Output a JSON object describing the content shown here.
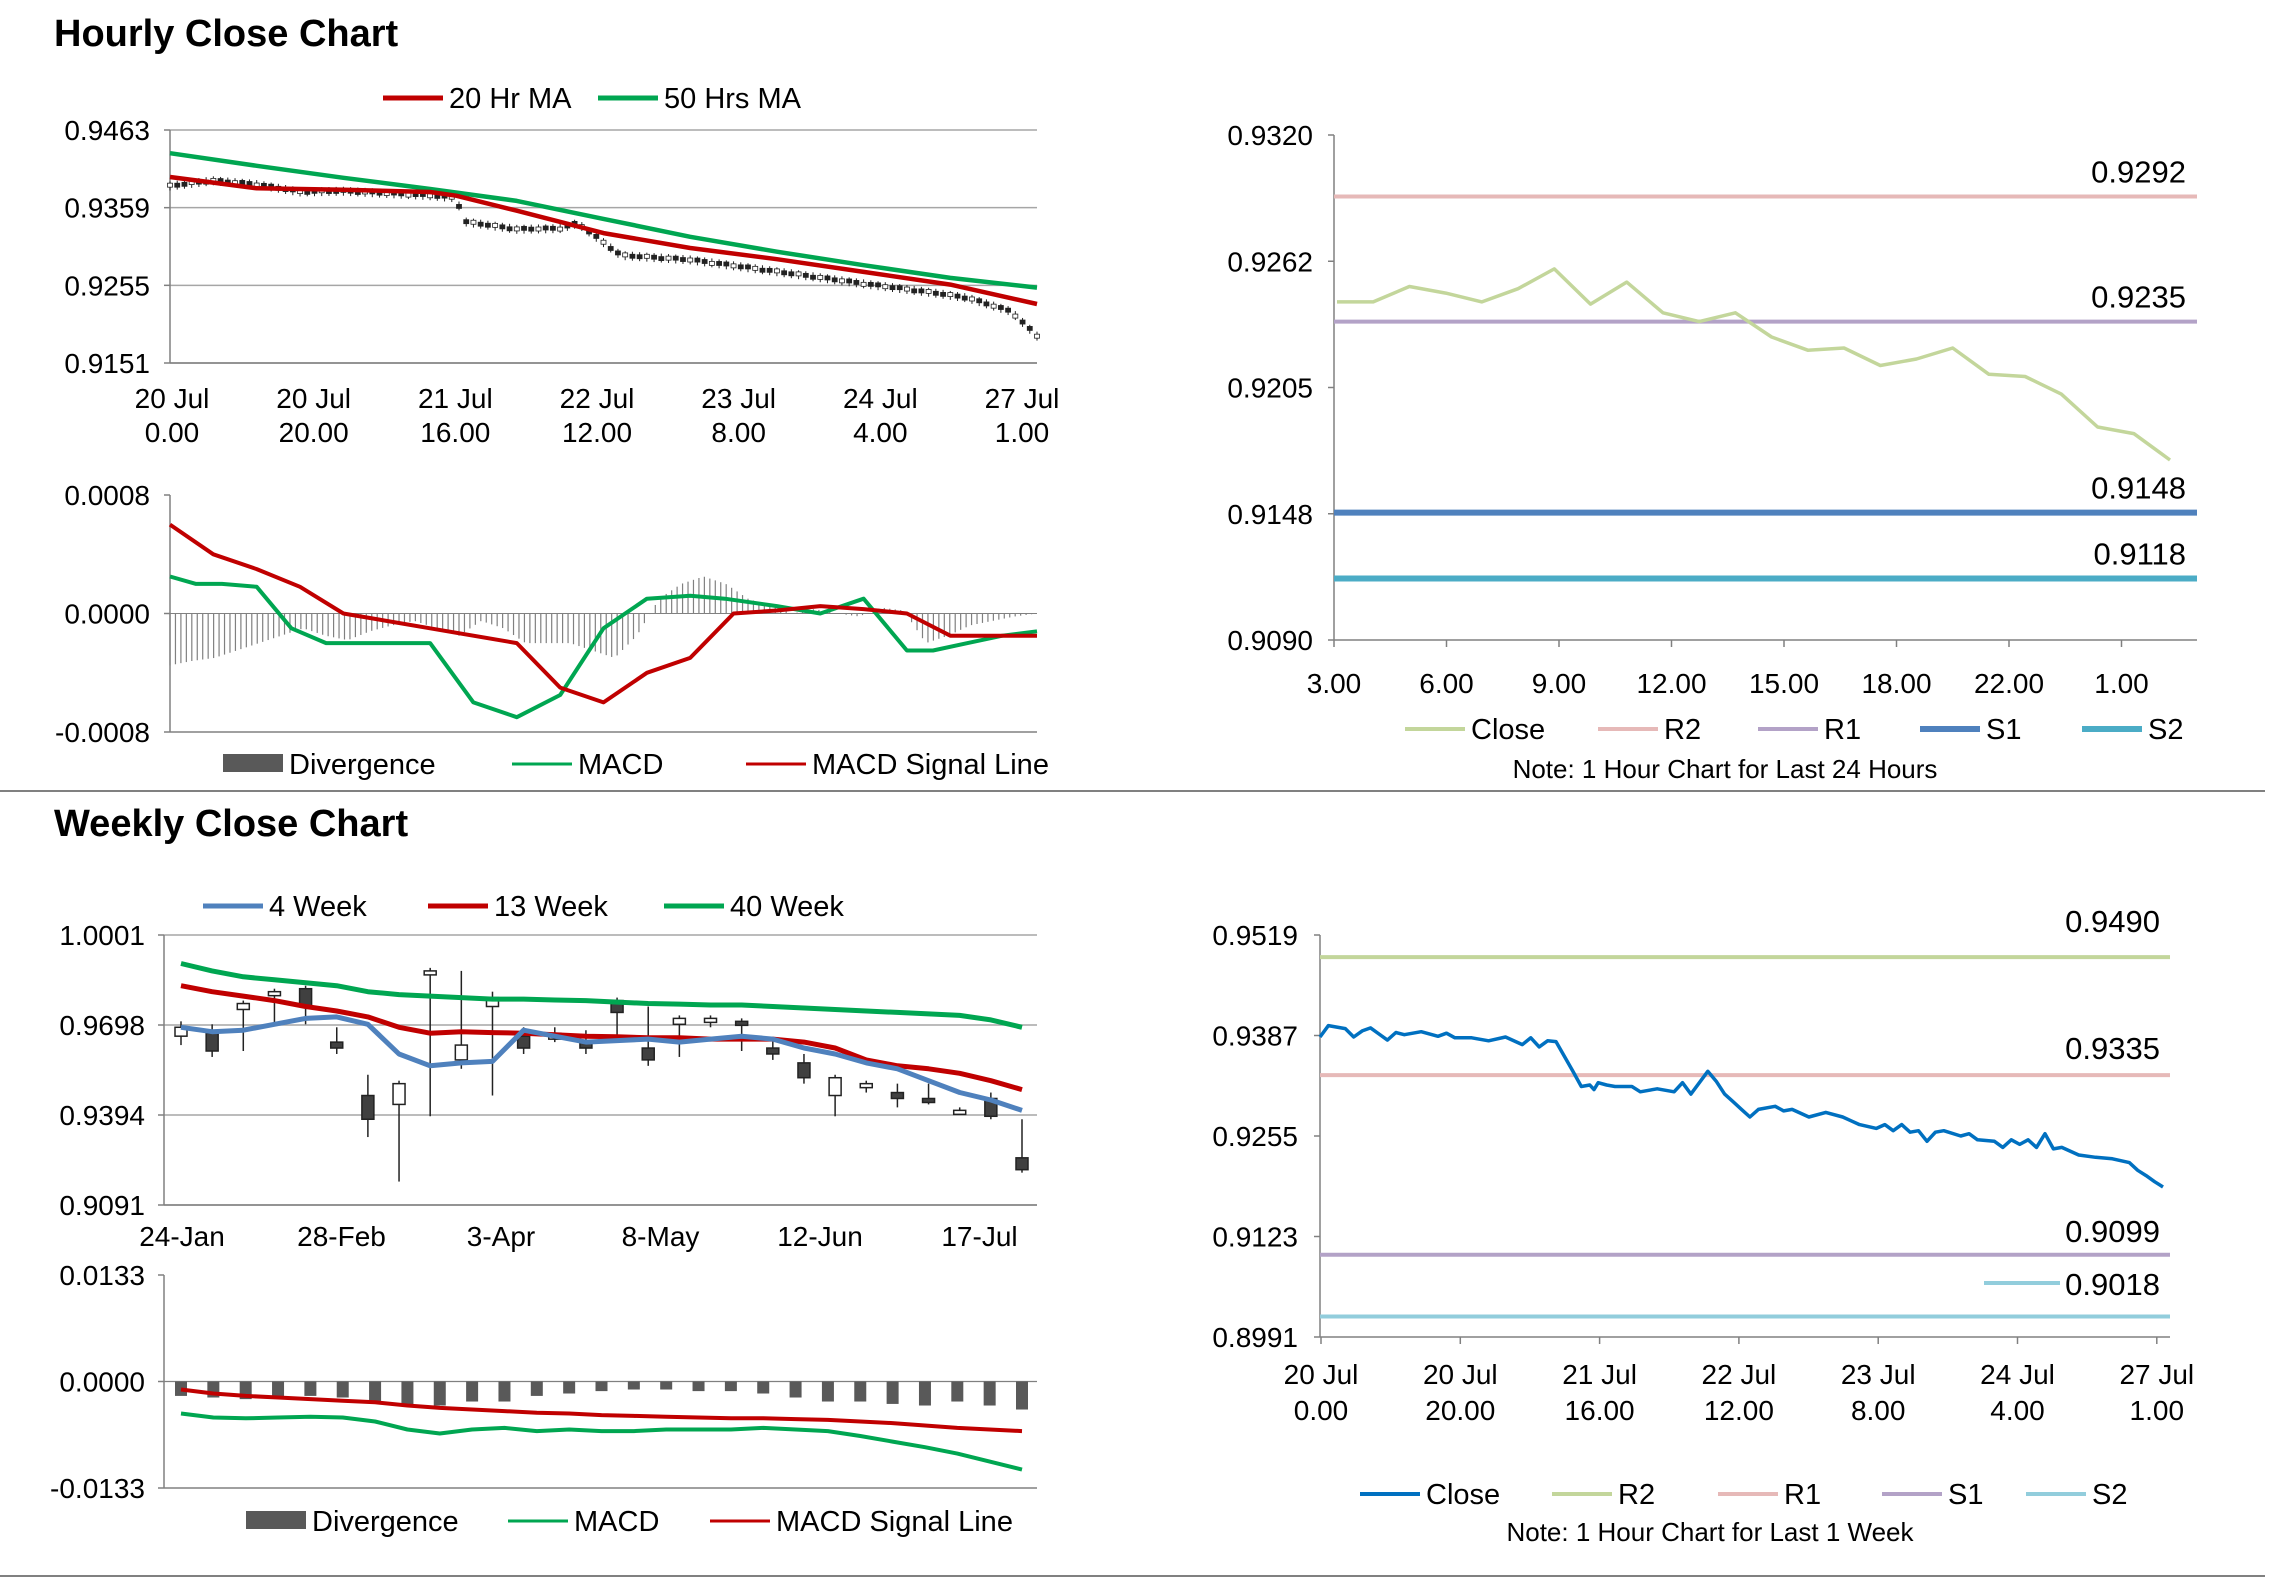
{
  "sections": {
    "hourly_title": "Hourly Close Chart",
    "weekly_title": "Weekly Close Chart"
  },
  "colors": {
    "red": "#c00000",
    "green": "#00a651",
    "blue": "#4f81bd",
    "close_light": "#c3d69b",
    "r2_pink": "#e6b9b8",
    "r1_purple": "#b3a2c7",
    "s1_blue": "#4f81bd",
    "s2_teal": "#4bacc6",
    "close_dark": "#0070c0",
    "bar_gray": "#595959"
  },
  "chart_data": [
    {
      "id": "hourly_price",
      "type": "line",
      "title": "",
      "legend": [
        "20 Hr MA",
        "50 Hrs MA"
      ],
      "y_ticks": [
        "0.9463",
        "0.9359",
        "0.9255",
        "0.9151"
      ],
      "ylim": [
        0.9151,
        0.9463
      ],
      "x_labels": [
        [
          "20 Jul",
          "0.00"
        ],
        [
          "20 Jul",
          "20.00"
        ],
        [
          "21 Jul",
          "16.00"
        ],
        [
          "22 Jul",
          "12.00"
        ],
        [
          "23 Jul",
          "8.00"
        ],
        [
          "24 Jul",
          "4.00"
        ],
        [
          "27 Jul",
          "1.00"
        ]
      ],
      "series": [
        {
          "name": "50 Hrs MA",
          "x": [
            0,
            10,
            20,
            30,
            40,
            50,
            60,
            70,
            80,
            90,
            100
          ],
          "values": [
            0.9432,
            0.9415,
            0.9399,
            0.9384,
            0.9368,
            0.9344,
            0.932,
            0.93,
            0.9282,
            0.9265,
            0.9252
          ]
        },
        {
          "name": "20 Hr MA",
          "x": [
            0,
            10,
            20,
            30,
            33,
            40,
            50,
            60,
            70,
            80,
            90,
            100
          ],
          "values": [
            0.94,
            0.9385,
            0.9383,
            0.938,
            0.9375,
            0.9355,
            0.9325,
            0.9305,
            0.929,
            0.9273,
            0.9256,
            0.923
          ]
        },
        {
          "name": "Close",
          "x": [
            0,
            5,
            10,
            15,
            20,
            25,
            30,
            33,
            34,
            40,
            45,
            47,
            52,
            60,
            67,
            72,
            80,
            88,
            92,
            97,
            100
          ],
          "values": [
            0.9388,
            0.9395,
            0.939,
            0.938,
            0.9381,
            0.9378,
            0.9375,
            0.9372,
            0.934,
            0.933,
            0.9331,
            0.9338,
            0.9295,
            0.9289,
            0.9278,
            0.927,
            0.9257,
            0.9245,
            0.9238,
            0.922,
            0.9187
          ]
        }
      ]
    },
    {
      "id": "hourly_macd",
      "type": "line",
      "y_ticks": [
        "0.0008",
        "0.0000",
        "-0.0008"
      ],
      "ylim": [
        -0.0008,
        0.0008
      ],
      "legend": [
        "Divergence",
        "MACD",
        "MACD Signal Line"
      ],
      "series": [
        {
          "name": "MACD",
          "x": [
            0,
            3,
            6,
            10,
            14,
            18,
            22,
            26,
            30,
            35,
            40,
            45,
            50,
            55,
            60,
            64,
            70,
            75,
            80,
            85,
            88,
            92,
            96,
            100
          ],
          "values": [
            0.00025,
            0.0002,
            0.0002,
            0.00018,
            -0.0001,
            -0.0002,
            -0.0002,
            -0.0002,
            -0.0002,
            -0.0006,
            -0.0007,
            -0.00055,
            -0.0001,
            0.0001,
            0.00012,
            0.0001,
            5e-05,
            0.0,
            0.0001,
            -0.00025,
            -0.00025,
            -0.0002,
            -0.00015,
            -0.00012
          ]
        },
        {
          "name": "MACD Signal Line",
          "x": [
            0,
            5,
            10,
            15,
            20,
            30,
            40,
            45,
            50,
            55,
            60,
            65,
            70,
            75,
            80,
            85,
            90,
            100
          ],
          "values": [
            0.0006,
            0.0004,
            0.0003,
            0.00018,
            0.0,
            -0.0001,
            -0.0002,
            -0.0005,
            -0.0006,
            -0.0004,
            -0.0003,
            0.0,
            2e-05,
            5e-05,
            3e-05,
            0.0,
            -0.00015,
            -0.00015
          ]
        },
        {
          "name": "Divergence",
          "x_start": 0,
          "x_end": 100,
          "values": [
            -0.00035,
            -0.00032,
            -0.0003,
            -0.00025,
            -0.0002,
            -0.00015,
            -0.0001,
            -0.00015,
            -0.00018,
            -0.00012,
            -8e-05,
            -5e-05,
            -0.0001,
            -0.00015,
            -5e-05,
            -0.0001,
            -0.0002,
            -0.0002,
            -0.0002,
            -0.00025,
            -0.0003,
            -0.00015,
            0.0001,
            0.0002,
            0.00025,
            0.0002,
            0.0001,
            5e-05,
            0.0,
            3e-05,
            0.0,
            -2e-05,
            4e-05,
            2e-05,
            -0.0002,
            -0.00015,
            -8e-05,
            -5e-05,
            -2e-05,
            0.0
          ]
        }
      ]
    },
    {
      "id": "hourly_24h",
      "type": "line",
      "note": "Note: 1 Hour Chart for Last 24 Hours",
      "y_ticks": [
        "0.9320",
        "0.9262",
        "0.9205",
        "0.9148",
        "0.9090"
      ],
      "ylim": [
        0.909,
        0.932
      ],
      "x_ticks": [
        "3.00",
        "6.00",
        "9.00",
        "12.00",
        "15.00",
        "18.00",
        "22.00",
        "1.00"
      ],
      "legend": [
        "Close",
        "R2",
        "R1",
        "S1",
        "S2"
      ],
      "levels": {
        "R2": 0.9292,
        "R1": 0.9235,
        "S1": 0.9148,
        "S2": 0.9118
      },
      "level_labels": {
        "R2": "0.9292",
        "R1": "0.9235",
        "S1": "0.9148",
        "S2": "0.9118"
      },
      "series": [
        {
          "name": "Close",
          "values": [
            0.9244,
            0.9244,
            0.9251,
            0.9248,
            0.9244,
            0.925,
            0.9259,
            0.9243,
            0.9253,
            0.9239,
            0.9235,
            0.9239,
            0.9228,
            0.9222,
            0.9223,
            0.9215,
            0.9218,
            0.9223,
            0.9211,
            0.921,
            0.9202,
            0.9187,
            0.9184,
            0.9172
          ]
        }
      ]
    },
    {
      "id": "weekly_price",
      "type": "candlestick",
      "legend": [
        "4 Week",
        "13 Week",
        "40 Week"
      ],
      "y_ticks": [
        "1.0001",
        "0.9698",
        "0.9394",
        "0.9091"
      ],
      "ylim": [
        0.9091,
        1.0001
      ],
      "x_ticks": [
        "24-Jan",
        "28-Feb",
        "3-Apr",
        "8-May",
        "12-Jun",
        "17-Jul"
      ],
      "candles": [
        {
          "o": 0.966,
          "c": 0.969,
          "h": 0.971,
          "l": 0.963
        },
        {
          "o": 0.967,
          "c": 0.961,
          "h": 0.97,
          "l": 0.959
        },
        {
          "o": 0.975,
          "c": 0.977,
          "h": 0.978,
          "l": 0.961
        },
        {
          "o": 0.981,
          "c": 0.981,
          "h": 0.982,
          "l": 0.97
        },
        {
          "o": 0.982,
          "c": 0.976,
          "h": 0.983,
          "l": 0.97
        },
        {
          "o": 0.964,
          "c": 0.962,
          "h": 0.969,
          "l": 0.96
        },
        {
          "o": 0.946,
          "c": 0.938,
          "h": 0.953,
          "l": 0.932
        },
        {
          "o": 0.943,
          "c": 0.95,
          "h": 0.951,
          "l": 0.917
        },
        {
          "o": 0.988,
          "c": 0.988,
          "h": 0.989,
          "l": 0.939
        },
        {
          "o": 0.958,
          "c": 0.963,
          "h": 0.988,
          "l": 0.955
        },
        {
          "o": 0.976,
          "c": 0.979,
          "h": 0.981,
          "l": 0.946
        },
        {
          "o": 0.966,
          "c": 0.962,
          "h": 0.969,
          "l": 0.96
        },
        {
          "o": 0.965,
          "c": 0.967,
          "h": 0.969,
          "l": 0.964
        },
        {
          "o": 0.964,
          "c": 0.962,
          "h": 0.968,
          "l": 0.96
        },
        {
          "o": 0.978,
          "c": 0.974,
          "h": 0.979,
          "l": 0.966
        },
        {
          "o": 0.962,
          "c": 0.958,
          "h": 0.976,
          "l": 0.956
        },
        {
          "o": 0.97,
          "c": 0.972,
          "h": 0.973,
          "l": 0.959
        },
        {
          "o": 0.972,
          "c": 0.972,
          "h": 0.973,
          "l": 0.969
        },
        {
          "o": 0.971,
          "c": 0.97,
          "h": 0.972,
          "l": 0.961
        },
        {
          "o": 0.962,
          "c": 0.96,
          "h": 0.965,
          "l": 0.958
        },
        {
          "o": 0.957,
          "c": 0.952,
          "h": 0.96,
          "l": 0.95
        },
        {
          "o": 0.946,
          "c": 0.952,
          "h": 0.953,
          "l": 0.939
        },
        {
          "o": 0.95,
          "c": 0.95,
          "h": 0.951,
          "l": 0.947
        },
        {
          "o": 0.947,
          "c": 0.945,
          "h": 0.95,
          "l": 0.942
        },
        {
          "o": 0.945,
          "c": 0.944,
          "h": 0.95,
          "l": 0.943
        },
        {
          "o": 0.941,
          "c": 0.941,
          "h": 0.942,
          "l": 0.94
        },
        {
          "o": 0.945,
          "c": 0.939,
          "h": 0.947,
          "l": 0.938
        },
        {
          "o": 0.925,
          "c": 0.921,
          "h": 0.938,
          "l": 0.92
        }
      ],
      "series": [
        {
          "name": "40 Week",
          "values": [
            0.9905,
            0.988,
            0.986,
            0.985,
            0.984,
            0.983,
            0.981,
            0.98,
            0.9795,
            0.979,
            0.9785,
            0.9785,
            0.9782,
            0.978,
            0.9775,
            0.977,
            0.9768,
            0.9765,
            0.9765,
            0.976,
            0.9755,
            0.975,
            0.9745,
            0.974,
            0.9735,
            0.973,
            0.9715,
            0.969
          ]
        },
        {
          "name": "13 Week",
          "values": [
            0.983,
            0.981,
            0.9795,
            0.978,
            0.976,
            0.9745,
            0.9725,
            0.969,
            0.967,
            0.9675,
            0.9672,
            0.967,
            0.9665,
            0.966,
            0.9658,
            0.9655,
            0.9655,
            0.965,
            0.965,
            0.965,
            0.964,
            0.962,
            0.958,
            0.956,
            0.955,
            0.9535,
            0.951,
            0.948
          ]
        },
        {
          "name": "4 Week",
          "values": [
            0.969,
            0.9675,
            0.968,
            0.97,
            0.972,
            0.9725,
            0.97,
            0.96,
            0.956,
            0.957,
            0.9575,
            0.968,
            0.966,
            0.964,
            0.9645,
            0.965,
            0.964,
            0.965,
            0.966,
            0.965,
            0.962,
            0.96,
            0.957,
            0.955,
            0.951,
            0.947,
            0.9445,
            0.941
          ]
        }
      ]
    },
    {
      "id": "weekly_macd",
      "type": "bar",
      "y_ticks": [
        "0.0133",
        "0.0000",
        "-0.0133"
      ],
      "ylim": [
        -0.0133,
        0.0133
      ],
      "legend": [
        "Divergence",
        "MACD",
        "MACD Signal Line"
      ],
      "series": [
        {
          "name": "Divergence",
          "values": [
            -0.0018,
            -0.002,
            -0.0022,
            -0.002,
            -0.0018,
            -0.002,
            -0.0025,
            -0.003,
            -0.003,
            -0.0025,
            -0.0025,
            -0.0018,
            -0.0015,
            -0.0012,
            -0.001,
            -0.001,
            -0.0012,
            -0.0012,
            -0.0015,
            -0.002,
            -0.0025,
            -0.0025,
            -0.0028,
            -0.003,
            -0.0025,
            -0.003,
            -0.0035
          ]
        },
        {
          "name": "MACD",
          "values": [
            -0.004,
            -0.0045,
            -0.0046,
            -0.0045,
            -0.0044,
            -0.0045,
            -0.005,
            -0.006,
            -0.0065,
            -0.006,
            -0.0058,
            -0.0062,
            -0.006,
            -0.0062,
            -0.0062,
            -0.006,
            -0.006,
            -0.006,
            -0.0058,
            -0.006,
            -0.0062,
            -0.0068,
            -0.0075,
            -0.0082,
            -0.009,
            -0.01,
            -0.011
          ]
        },
        {
          "name": "MACD Signal Line",
          "values": [
            -0.001,
            -0.0015,
            -0.0018,
            -0.002,
            -0.0022,
            -0.0024,
            -0.0026,
            -0.003,
            -0.0033,
            -0.0035,
            -0.0037,
            -0.0039,
            -0.004,
            -0.0042,
            -0.0043,
            -0.0044,
            -0.0045,
            -0.0046,
            -0.0046,
            -0.0047,
            -0.0048,
            -0.005,
            -0.0052,
            -0.0055,
            -0.0058,
            -0.006,
            -0.0062
          ]
        }
      ]
    },
    {
      "id": "weekly_1w",
      "type": "line",
      "note": "Note: 1 Hour Chart for Last 1 Week",
      "y_ticks": [
        "0.9519",
        "0.9387",
        "0.9255",
        "0.9123",
        "0.8991"
      ],
      "ylim": [
        0.8991,
        0.9519
      ],
      "x_labels": [
        [
          "20 Jul",
          "0.00"
        ],
        [
          "20 Jul",
          "20.00"
        ],
        [
          "21 Jul",
          "16.00"
        ],
        [
          "22 Jul",
          "12.00"
        ],
        [
          "23 Jul",
          "8.00"
        ],
        [
          "24 Jul",
          "4.00"
        ],
        [
          "27 Jul",
          "1.00"
        ]
      ],
      "legend": [
        "Close",
        "R2",
        "R1",
        "S1",
        "S2"
      ],
      "levels": {
        "R2": 0.949,
        "R1": 0.9335,
        "S1": 0.9099,
        "S2": 0.9018
      },
      "level_labels": {
        "R2": "0.9490",
        "R1": "0.9335",
        "S1": "0.9099",
        "S2": "0.9018"
      },
      "series": [
        {
          "name": "Close",
          "x": [
            0,
            1,
            3,
            4,
            5,
            6,
            7,
            8,
            9,
            10,
            12,
            14,
            15,
            16,
            18,
            20,
            22,
            24,
            25,
            26,
            27,
            28,
            30,
            31,
            32,
            32.5,
            33,
            34,
            35,
            37,
            38,
            40,
            42,
            43,
            44,
            46,
            47,
            48,
            49,
            50,
            51,
            52,
            54,
            55,
            56,
            58,
            60,
            62,
            63,
            64,
            66,
            67,
            68,
            69,
            70,
            71,
            72,
            73,
            74,
            76,
            77,
            78,
            80,
            81,
            82,
            83,
            84,
            85,
            86,
            87,
            88,
            90,
            92,
            94,
            96,
            97,
            98,
            99,
            100
          ],
          "values": [
            0.9385,
            0.94,
            0.9396,
            0.9385,
            0.9393,
            0.9397,
            0.9389,
            0.9381,
            0.9391,
            0.9388,
            0.9392,
            0.9386,
            0.939,
            0.9384,
            0.9384,
            0.938,
            0.9385,
            0.9375,
            0.9384,
            0.9372,
            0.938,
            0.9379,
            0.934,
            0.932,
            0.9322,
            0.9316,
            0.9325,
            0.9322,
            0.932,
            0.932,
            0.9313,
            0.9317,
            0.9313,
            0.9325,
            0.931,
            0.934,
            0.9327,
            0.931,
            0.93,
            0.929,
            0.928,
            0.929,
            0.9294,
            0.9288,
            0.929,
            0.928,
            0.9286,
            0.928,
            0.9275,
            0.927,
            0.9265,
            0.927,
            0.9262,
            0.927,
            0.926,
            0.9262,
            0.9248,
            0.926,
            0.9262,
            0.9255,
            0.9258,
            0.925,
            0.9248,
            0.924,
            0.925,
            0.9244,
            0.925,
            0.924,
            0.9258,
            0.9238,
            0.924,
            0.923,
            0.9227,
            0.9225,
            0.922,
            0.921,
            0.9203,
            0.9195,
            0.9188
          ]
        }
      ]
    }
  ]
}
